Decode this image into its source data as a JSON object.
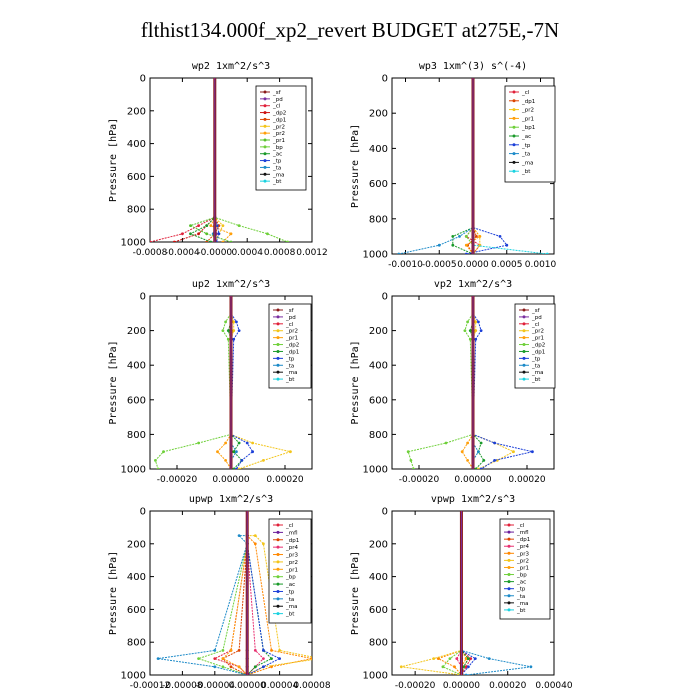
{
  "title": "flthist134.000f_xp2_revert  BUDGET at275E,-7N",
  "colors": {
    "sf": "#8b1a1a",
    "pd": "#7a2fa0",
    "cl": "#e0203a",
    "dp2": "#cc1111",
    "dp1": "#dd4400",
    "pr2": "#f3c51a",
    "pr1": "#ff9f0a",
    "pr3": "#ff8800",
    "pr4": "#e83070",
    "mfl": "#6b1d9b",
    "bp": "#6fd03a",
    "bp1": "#55c02a",
    "ac": "#1a9a2a",
    "tp": "#1b3fd8",
    "ta": "#1c8ac8",
    "ma": "#111111",
    "bt": "#1ad2e0"
  },
  "chart_data": [
    {
      "type": "line",
      "title": "wp2   1xm^2/s^3",
      "ylabel": "Pressure  [hPa]",
      "xlim": [
        -0.0008,
        0.0012
      ],
      "ylim": [
        1000,
        0
      ],
      "xticks": [
        -0.0008,
        -0.0004,
        0,
        0.0004,
        0.0008,
        0.0012
      ],
      "xtick_labels": [
        "-0.0008",
        "-0.0004",
        "-0.0000",
        "0.0004",
        "0.0008",
        "0.0012"
      ],
      "yticks": [
        0,
        200,
        400,
        600,
        800,
        1000
      ],
      "legend": "top-right",
      "levels": [
        850,
        900,
        950,
        1000
      ],
      "series": [
        {
          "name": "_sf",
          "key": "sf",
          "values": [
            0,
            0,
            0,
            0
          ]
        },
        {
          "name": "_pd",
          "key": "pd",
          "values": [
            0,
            1e-05,
            2e-05,
            1e-05
          ]
        },
        {
          "name": "_cl",
          "key": "cl",
          "values": [
            0,
            -0.0002,
            -0.0004,
            -0.0008
          ]
        },
        {
          "name": "_dp2",
          "key": "dp2",
          "values": [
            0,
            -0.0001,
            -0.0002,
            -0.0005
          ]
        },
        {
          "name": "_dp1",
          "key": "dp1",
          "values": [
            0,
            5e-05,
            0,
            -0.0001
          ]
        },
        {
          "name": "_pr2",
          "key": "pr2",
          "values": [
            0,
            0.0001,
            5e-05,
            0
          ]
        },
        {
          "name": "_pr2",
          "key": "pr1",
          "values": [
            0,
            -5e-05,
            0.0002,
            0.0001
          ]
        },
        {
          "name": "_pr1",
          "key": "bp1",
          "values": [
            0,
            -0.0003,
            -0.0001,
            0.0002
          ]
        },
        {
          "name": "_bp",
          "key": "bp",
          "values": [
            0,
            0.0003,
            0.00065,
            0.0009
          ]
        },
        {
          "name": "_ac",
          "key": "ac",
          "values": [
            0,
            -0.0001,
            -0.0003,
            -5e-05
          ]
        },
        {
          "name": "_tp",
          "key": "tp",
          "values": [
            0,
            3e-05,
            5e-05,
            2e-05
          ]
        },
        {
          "name": "_ta",
          "key": "ta",
          "values": [
            0,
            1e-05,
            -2e-05,
            0
          ]
        },
        {
          "name": "_ma",
          "key": "ma",
          "values": [
            0,
            0,
            0,
            0
          ]
        },
        {
          "name": "_bt",
          "key": "bt",
          "values": [
            0,
            0,
            0,
            0
          ]
        }
      ]
    },
    {
      "type": "line",
      "title": "wp3   1xm^(3) s^(-4)",
      "ylabel": "Pressure  [hPa]",
      "xlim": [
        -0.0012,
        0.0012
      ],
      "ylim": [
        1000,
        0
      ],
      "xticks": [
        -0.001,
        -0.0005,
        0,
        0.0005,
        0.001
      ],
      "xtick_labels": [
        "-0.0010",
        "-0.0005",
        "0.0000",
        "0.0005",
        "0.0010"
      ],
      "yticks": [
        0,
        200,
        400,
        600,
        800,
        1000
      ],
      "legend": "top-right",
      "levels": [
        850,
        900,
        950,
        1000
      ],
      "series": [
        {
          "name": "_cl",
          "key": "cl",
          "values": [
            0,
            -0.0001,
            0.0001,
            0
          ]
        },
        {
          "name": "_dp1",
          "key": "dp1",
          "values": [
            0,
            5e-05,
            -8e-05,
            0
          ]
        },
        {
          "name": "_pr2",
          "key": "pr2",
          "values": [
            0,
            0.0001,
            0.0001,
            0
          ]
        },
        {
          "name": "_pr1",
          "key": "pr1",
          "values": [
            0,
            0.0001,
            -0.0001,
            0
          ]
        },
        {
          "name": "_bp1",
          "key": "bp",
          "values": [
            0,
            -0.0001,
            0,
            0
          ]
        },
        {
          "name": "_ac",
          "key": "ac",
          "values": [
            0,
            -0.0003,
            -0.0003,
            0
          ]
        },
        {
          "name": "_tp",
          "key": "tp",
          "values": [
            0,
            0.0004,
            0.0005,
            -0.0001
          ]
        },
        {
          "name": "_ta",
          "key": "ta",
          "values": [
            0,
            -0.0002,
            -0.0005,
            -0.0011
          ]
        },
        {
          "name": "_ma",
          "key": "ma",
          "values": [
            0,
            0,
            0,
            0
          ]
        },
        {
          "name": "_bt",
          "key": "bt",
          "values": [
            0,
            0,
            0,
            0.0011
          ]
        }
      ]
    },
    {
      "type": "line",
      "title": "up2   1xm^2/s^3",
      "ylabel": "Pressure  [hPa]",
      "xlim": [
        -0.0003,
        0.0003
      ],
      "ylim": [
        1000,
        0
      ],
      "xticks": [
        -0.0002,
        0,
        0.0002
      ],
      "xtick_labels": [
        "-0.00020",
        "0.00000",
        "0.00020"
      ],
      "yticks": [
        0,
        200,
        400,
        600,
        800,
        1000
      ],
      "legend": "top-right",
      "levels": [
        100,
        150,
        200,
        250,
        800,
        850,
        900,
        950,
        1000
      ],
      "series": [
        {
          "name": "_sf",
          "key": "sf",
          "values": [
            0,
            0,
            0,
            0,
            0,
            0,
            0,
            0,
            0
          ]
        },
        {
          "name": "_pd",
          "key": "pd",
          "values": [
            0,
            0,
            0,
            0,
            0,
            0,
            0,
            0,
            0
          ]
        },
        {
          "name": "_cl",
          "key": "cl",
          "values": [
            0,
            0,
            0,
            0,
            0,
            0,
            0,
            0,
            0
          ]
        },
        {
          "name": "_pr2",
          "key": "pr2",
          "values": [
            0,
            1e-05,
            1e-05,
            0,
            0,
            8e-05,
            0.00022,
            0.00012,
            3e-05
          ]
        },
        {
          "name": "_pr1",
          "key": "pr1",
          "values": [
            0,
            0,
            0,
            0,
            0,
            -2e-05,
            -5e-05,
            -2e-05,
            0
          ]
        },
        {
          "name": "_dp2",
          "key": "bp",
          "values": [
            0,
            -2e-05,
            -3e-05,
            -1e-05,
            0,
            -0.00012,
            -0.00025,
            -0.00028,
            -0.00027
          ]
        },
        {
          "name": "_dp1",
          "key": "ac",
          "values": [
            0,
            0,
            -1e-05,
            0,
            0,
            3e-05,
            1e-05,
            4e-05,
            1e-05
          ]
        },
        {
          "name": "_tp",
          "key": "tp",
          "values": [
            0,
            2e-05,
            3e-05,
            1e-05,
            0,
            6e-05,
            8e-05,
            4e-05,
            2e-05
          ]
        },
        {
          "name": "_ta",
          "key": "ta",
          "values": [
            0,
            0,
            0,
            0,
            0,
            0,
            2e-05,
            0,
            0
          ]
        },
        {
          "name": "_ma",
          "key": "ma",
          "values": [
            0,
            0,
            0,
            0,
            0,
            0,
            0,
            0,
            0
          ]
        },
        {
          "name": "_bt",
          "key": "bt",
          "values": [
            0,
            0,
            0,
            0,
            0,
            0,
            0,
            0,
            0
          ]
        }
      ]
    },
    {
      "type": "line",
      "title": "vp2   1xm^2/s^3",
      "ylabel": "Pressure  [hPa]",
      "xlim": [
        -0.0003,
        0.0003
      ],
      "ylim": [
        1000,
        0
      ],
      "xticks": [
        -0.0002,
        0,
        0.0002
      ],
      "xtick_labels": [
        "-0.00020",
        "0.00000",
        "0.00020"
      ],
      "yticks": [
        0,
        200,
        400,
        600,
        800,
        1000
      ],
      "legend": "top-right",
      "levels": [
        100,
        150,
        200,
        250,
        800,
        850,
        900,
        950,
        1000
      ],
      "series": [
        {
          "name": "_sf",
          "key": "sf",
          "values": [
            0,
            0,
            0,
            0,
            0,
            0,
            0,
            0,
            0
          ]
        },
        {
          "name": "_pd",
          "key": "pd",
          "values": [
            0,
            0,
            0,
            0,
            0,
            0,
            0,
            0,
            0
          ]
        },
        {
          "name": "_cl",
          "key": "cl",
          "values": [
            0,
            0,
            0,
            0,
            0,
            0,
            0,
            0,
            0
          ]
        },
        {
          "name": "_pr2",
          "key": "pr2",
          "values": [
            0,
            1e-05,
            1e-05,
            0,
            0,
            8e-05,
            0.00015,
            9e-05,
            2e-05
          ]
        },
        {
          "name": "_pr1",
          "key": "pr1",
          "values": [
            0,
            0,
            0,
            0,
            0,
            -2e-05,
            -4e-05,
            -2e-05,
            0
          ]
        },
        {
          "name": "_dp2",
          "key": "bp",
          "values": [
            0,
            -2e-05,
            -3e-05,
            -1e-05,
            0,
            -0.0001,
            -0.00024,
            -0.00023,
            -0.00022
          ]
        },
        {
          "name": "_dp1",
          "key": "ac",
          "values": [
            0,
            0,
            -1e-05,
            0,
            0,
            3e-05,
            2e-05,
            4e-05,
            1e-05
          ]
        },
        {
          "name": "_tp",
          "key": "tp",
          "values": [
            0,
            2e-05,
            3e-05,
            1e-05,
            0,
            8e-05,
            0.00022,
            8e-05,
            3e-05
          ]
        },
        {
          "name": "_ta",
          "key": "ta",
          "values": [
            0,
            0,
            0,
            0,
            0,
            0,
            2e-05,
            0,
            0
          ]
        },
        {
          "name": "_ma",
          "key": "ma",
          "values": [
            0,
            0,
            0,
            0,
            0,
            0,
            0,
            0,
            0
          ]
        },
        {
          "name": "_bt",
          "key": "bt",
          "values": [
            0,
            0,
            0,
            0,
            0,
            0,
            0,
            0,
            0
          ]
        }
      ]
    },
    {
      "type": "line",
      "title": "upwp   1xm^2/s^3",
      "ylabel": "Pressure  [hPa]",
      "xlim": [
        -0.00012,
        8e-05
      ],
      "ylim": [
        1000,
        0
      ],
      "xticks": [
        -0.00012,
        -8e-05,
        -4e-05,
        0,
        4e-05,
        8e-05
      ],
      "xtick_labels": [
        "-0.00012",
        "-0.00008",
        "-0.00004",
        "0.00000",
        "0.00004",
        "0.00008"
      ],
      "yticks": [
        0,
        200,
        400,
        600,
        800,
        1000
      ],
      "legend": "top-right",
      "levels": [
        150,
        200,
        850,
        900,
        950,
        1000
      ],
      "series": [
        {
          "name": "_cl",
          "key": "cl",
          "values": [
            0,
            0,
            -2e-05,
            -4e-05,
            -1e-05,
            0
          ]
        },
        {
          "name": "_mfl",
          "key": "mfl",
          "values": [
            0,
            0,
            0,
            0,
            0,
            0
          ]
        },
        {
          "name": "_dp1",
          "key": "dp1",
          "values": [
            0,
            0,
            -1e-05,
            -3e-05,
            -2e-05,
            0
          ]
        },
        {
          "name": "_pr4",
          "key": "pr4",
          "values": [
            0,
            0,
            1e-05,
            2e-05,
            1e-05,
            0
          ]
        },
        {
          "name": "_pr3",
          "key": "pr3",
          "values": [
            0,
            1e-05,
            3e-05,
            8e-05,
            3e-05,
            0
          ]
        },
        {
          "name": "_pr2",
          "key": "pr2",
          "values": [
            1e-05,
            2e-05,
            4e-05,
            9e-05,
            2e-05,
            0
          ]
        },
        {
          "name": "_pr1",
          "key": "pr1",
          "values": [
            0,
            0,
            -2e-05,
            -3e-05,
            -1e-05,
            0
          ]
        },
        {
          "name": "_bp",
          "key": "bp",
          "values": [
            0,
            0,
            -3e-05,
            -6e-05,
            -3e-05,
            0
          ]
        },
        {
          "name": "_ac",
          "key": "ac",
          "values": [
            0,
            0,
            2e-05,
            3e-05,
            1e-05,
            0
          ]
        },
        {
          "name": "_tp",
          "key": "tp",
          "values": [
            0,
            0,
            2e-05,
            4e-05,
            2e-05,
            0
          ]
        },
        {
          "name": "_ta",
          "key": "ta",
          "values": [
            -1e-05,
            0,
            -4e-05,
            -0.00011,
            -4e-05,
            0
          ]
        },
        {
          "name": "_ma",
          "key": "ma",
          "values": [
            0,
            0,
            0,
            0,
            0,
            0
          ]
        },
        {
          "name": "_bt",
          "key": "bt",
          "values": [
            0,
            0,
            0,
            0,
            0,
            0
          ]
        }
      ]
    },
    {
      "type": "line",
      "title": "vpwp   1xm^2/s^3",
      "ylabel": "Pressure  [hPa]",
      "xlim": [
        -0.0003,
        0.0004
      ],
      "ylim": [
        1000,
        0
      ],
      "xticks": [
        -0.0002,
        0,
        0.0002,
        0.0004
      ],
      "xtick_labels": [
        "-0.00020",
        "0.00000",
        "0.00020",
        "0.00040"
      ],
      "yticks": [
        0,
        200,
        400,
        600,
        800,
        1000
      ],
      "legend": "top-right",
      "levels": [
        850,
        900,
        950,
        1000
      ],
      "series": [
        {
          "name": "_cl",
          "key": "cl",
          "values": [
            0,
            4e-05,
            2e-05,
            0
          ]
        },
        {
          "name": "_mfl",
          "key": "mfl",
          "values": [
            0,
            0,
            0,
            0
          ]
        },
        {
          "name": "_dp1",
          "key": "dp1",
          "values": [
            0,
            3e-05,
            1e-05,
            0
          ]
        },
        {
          "name": "_pr4",
          "key": "pr4",
          "values": [
            0,
            -2e-05,
            0,
            0
          ]
        },
        {
          "name": "_pr3",
          "key": "pr3",
          "values": [
            0,
            -0.0001,
            -3e-05,
            0
          ]
        },
        {
          "name": "_pr2",
          "key": "pr2",
          "values": [
            0,
            -0.00012,
            -0.00026,
            0
          ]
        },
        {
          "name": "_pr1",
          "key": "pr1",
          "values": [
            0,
            2e-05,
            0,
            0
          ]
        },
        {
          "name": "_bp",
          "key": "bp",
          "values": [
            0,
            -5e-05,
            -8e-05,
            0
          ]
        },
        {
          "name": "_ac",
          "key": "ac",
          "values": [
            0,
            3e-05,
            1e-05,
            0
          ]
        },
        {
          "name": "_tp",
          "key": "tp",
          "values": [
            0,
            6e-05,
            3e-05,
            0
          ]
        },
        {
          "name": "_ta",
          "key": "ta",
          "values": [
            0,
            0.00012,
            0.0003,
            2e-05
          ]
        },
        {
          "name": "_ma",
          "key": "ma",
          "values": [
            0,
            0,
            0,
            0
          ]
        },
        {
          "name": "_bt",
          "key": "bt",
          "values": [
            0,
            0,
            0,
            0
          ]
        }
      ]
    }
  ]
}
